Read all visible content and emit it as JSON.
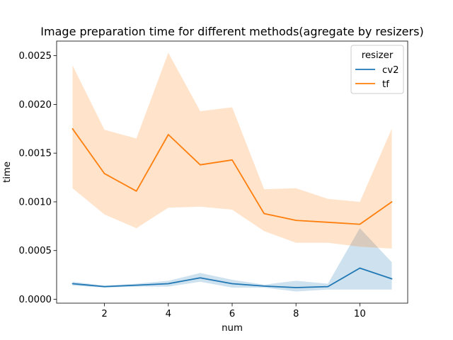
{
  "chart_data": {
    "type": "line",
    "title": "Image preparation time for different methods(agregate by resizers)",
    "xlabel": "num",
    "ylabel": "time",
    "xlim": [
      0.5,
      11.5
    ],
    "ylim": [
      -4e-05,
      0.00265
    ],
    "xticks": [
      2,
      4,
      6,
      8,
      10
    ],
    "xtick_labels": [
      "2",
      "4",
      "6",
      "8",
      "10"
    ],
    "yticks": [
      0,
      0.0005,
      0.001,
      0.0015,
      0.002,
      0.0025
    ],
    "ytick_labels": [
      "0.0000",
      "0.0005",
      "0.0010",
      "0.0015",
      "0.0020",
      "0.0025"
    ],
    "grid": false,
    "legend": {
      "title": "resizer",
      "placement": "top-right"
    },
    "x": [
      1,
      2,
      3,
      4,
      5,
      6,
      7,
      8,
      9,
      10,
      11
    ],
    "series": [
      {
        "name": "cv2",
        "color": "#1f77b4",
        "values": [
          0.00016,
          0.00013,
          0.000145,
          0.00016,
          0.00022,
          0.00016,
          0.000135,
          0.00012,
          0.00013,
          0.00032,
          0.00021
        ],
        "ci_low": [
          0.00014,
          0.00012,
          0.00013,
          0.00013,
          0.00018,
          0.00012,
          0.00012,
          8e-05,
          0.0001,
          0.0001,
          0.0001
        ],
        "ci_high": [
          0.00018,
          0.00014,
          0.00016,
          0.00019,
          0.00027,
          0.0002,
          0.00015,
          0.00019,
          0.00016,
          0.00073,
          0.00038
        ]
      },
      {
        "name": "tf",
        "color": "#ff7f0e",
        "values": [
          0.00175,
          0.00129,
          0.00111,
          0.00169,
          0.00138,
          0.00143,
          0.00088,
          0.00081,
          0.00079,
          0.00077,
          0.001
        ],
        "ci_low": [
          0.00114,
          0.00087,
          0.00073,
          0.00094,
          0.00095,
          0.00092,
          0.0007,
          0.00058,
          0.00058,
          0.00054,
          0.00052
        ],
        "ci_high": [
          0.0024,
          0.00174,
          0.00165,
          0.00253,
          0.00193,
          0.00197,
          0.00113,
          0.00114,
          0.00103,
          0.001,
          0.00175
        ]
      }
    ]
  }
}
